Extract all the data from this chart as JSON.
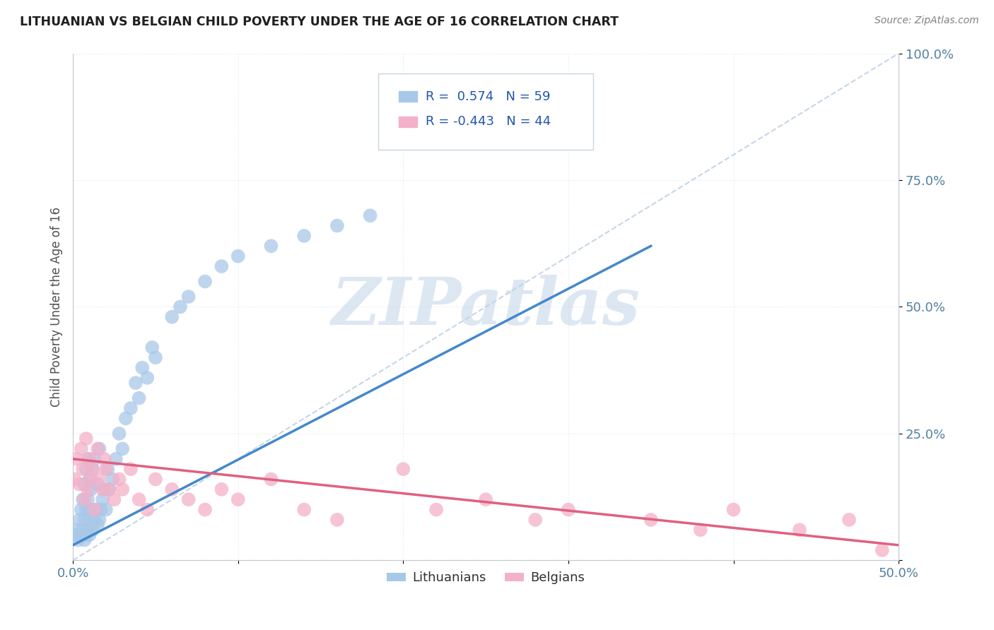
{
  "title": "LITHUANIAN VS BELGIAN CHILD POVERTY UNDER THE AGE OF 16 CORRELATION CHART",
  "source": "Source: ZipAtlas.com",
  "ylabel": "Child Poverty Under the Age of 16",
  "xlim": [
    0,
    0.5
  ],
  "ylim": [
    0,
    1.0
  ],
  "xticks": [
    0.0,
    0.1,
    0.2,
    0.3,
    0.4,
    0.5
  ],
  "yticks": [
    0.0,
    0.25,
    0.5,
    0.75,
    1.0
  ],
  "xticklabels": [
    "0.0%",
    "",
    "",
    "",
    "",
    "50.0%"
  ],
  "yticklabels": [
    "",
    "25.0%",
    "50.0%",
    "75.0%",
    "100.0%"
  ],
  "blue_color": "#a8c8e8",
  "pink_color": "#f4b0c8",
  "blue_line_color": "#4488cc",
  "pink_line_color": "#e06080",
  "ref_line_color": "#b8cce0",
  "grid_color": "#dde8f0",
  "background_color": "#ffffff",
  "watermark": "ZIPatlas",
  "watermark_color": "#c0d4e8",
  "r_blue": 0.574,
  "r_pink": -0.443,
  "n_blue": 59,
  "n_pink": 44,
  "blue_scatter_x": [
    0.001,
    0.002,
    0.003,
    0.004,
    0.005,
    0.005,
    0.006,
    0.006,
    0.007,
    0.007,
    0.007,
    0.008,
    0.008,
    0.008,
    0.009,
    0.009,
    0.009,
    0.01,
    0.01,
    0.01,
    0.011,
    0.011,
    0.012,
    0.012,
    0.013,
    0.013,
    0.014,
    0.015,
    0.015,
    0.016,
    0.016,
    0.017,
    0.018,
    0.019,
    0.02,
    0.021,
    0.022,
    0.024,
    0.026,
    0.028,
    0.03,
    0.032,
    0.035,
    0.038,
    0.04,
    0.042,
    0.045,
    0.048,
    0.05,
    0.06,
    0.065,
    0.07,
    0.08,
    0.09,
    0.1,
    0.12,
    0.14,
    0.16,
    0.18
  ],
  "blue_scatter_y": [
    0.05,
    0.06,
    0.04,
    0.08,
    0.05,
    0.1,
    0.06,
    0.12,
    0.04,
    0.08,
    0.15,
    0.05,
    0.1,
    0.18,
    0.06,
    0.12,
    0.2,
    0.05,
    0.1,
    0.16,
    0.08,
    0.14,
    0.06,
    0.18,
    0.08,
    0.2,
    0.1,
    0.07,
    0.15,
    0.08,
    0.22,
    0.1,
    0.12,
    0.14,
    0.1,
    0.18,
    0.14,
    0.16,
    0.2,
    0.25,
    0.22,
    0.28,
    0.3,
    0.35,
    0.32,
    0.38,
    0.36,
    0.42,
    0.4,
    0.48,
    0.5,
    0.52,
    0.55,
    0.58,
    0.6,
    0.62,
    0.64,
    0.66,
    0.68
  ],
  "pink_scatter_x": [
    0.001,
    0.002,
    0.004,
    0.005,
    0.006,
    0.007,
    0.008,
    0.009,
    0.01,
    0.011,
    0.012,
    0.013,
    0.015,
    0.016,
    0.018,
    0.019,
    0.02,
    0.022,
    0.025,
    0.028,
    0.03,
    0.035,
    0.04,
    0.045,
    0.05,
    0.06,
    0.07,
    0.08,
    0.09,
    0.1,
    0.12,
    0.14,
    0.16,
    0.2,
    0.22,
    0.25,
    0.28,
    0.3,
    0.35,
    0.38,
    0.4,
    0.44,
    0.47,
    0.49
  ],
  "pink_scatter_y": [
    0.16,
    0.2,
    0.15,
    0.22,
    0.18,
    0.12,
    0.24,
    0.14,
    0.2,
    0.16,
    0.18,
    0.1,
    0.22,
    0.16,
    0.14,
    0.2,
    0.18,
    0.14,
    0.12,
    0.16,
    0.14,
    0.18,
    0.12,
    0.1,
    0.16,
    0.14,
    0.12,
    0.1,
    0.14,
    0.12,
    0.16,
    0.1,
    0.08,
    0.18,
    0.1,
    0.12,
    0.08,
    0.1,
    0.08,
    0.06,
    0.1,
    0.06,
    0.08,
    0.02
  ]
}
